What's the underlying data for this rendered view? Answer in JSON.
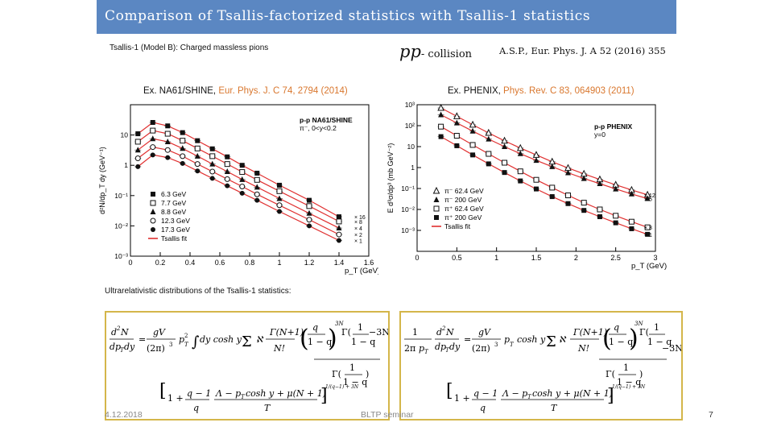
{
  "header": {
    "title": "Comparison of Tsallis-factorized statistics with Tsallis-1 statistics",
    "subtitle": "Tsallis-1 (Model B): Charged massless pions",
    "collision_pp": "pp",
    "collision_text": "- collision",
    "reference": "A.S.P., Eur. Phys. J. A 52 (2016) 355"
  },
  "captions": {
    "left_prefix": "Ex. NA61/SHINE, ",
    "left_journal": "Eur. Phys. J. C 74, 2794 (2014)",
    "right_prefix": "Ex. PHENIX, ",
    "right_journal": "Phys. Rev. C 83, 064903 (2011)"
  },
  "ultra_label": "Ultrarelativistic distributions of the Tsallis-1 statistics:",
  "footer": {
    "date": "4.12.2018",
    "center": "BLTP seminar",
    "page": "7"
  },
  "colors": {
    "title_bar": "#5b87c2",
    "fit_line": "#e03030",
    "journal_text": "#d9772e",
    "formula_border": "#d4b64a"
  },
  "chart_data": [
    {
      "type": "scatter",
      "x_log": false,
      "y_log": true,
      "xlabel": "p_T (GeV)",
      "ylabel": "d²N/dp_T dy (GeV⁻¹)",
      "xlim": [
        0,
        1.6
      ],
      "ylim": [
        0.001,
        100
      ],
      "x_ticks": [
        "0",
        "0.2",
        "0.4",
        "0.6",
        "0.8",
        "1",
        "1.2",
        "1.4",
        "1.6"
      ],
      "y_ticks": [
        "10⁻³",
        "10⁻²",
        "10⁻¹",
        "1",
        "10"
      ],
      "panel_label": [
        "p-p  NA61/SHINE",
        "π⁻, 0<y<0.2"
      ],
      "legend": [
        "6.3 GeV",
        "7.7 GeV",
        "8.8 GeV",
        "12.3 GeV",
        "17.3 GeV",
        "Tsallis fit"
      ],
      "legend_position": "bottom-left",
      "scale_labels": [
        "× 16",
        "× 8",
        "× 4",
        "× 2",
        "× 1"
      ],
      "series": [
        {
          "name": "6.3 GeV",
          "marker": "filled-square",
          "scale": 16,
          "x": [
            0.05,
            0.15,
            0.25,
            0.35,
            0.45,
            0.55,
            0.65,
            0.75,
            0.85,
            1.0,
            1.2,
            1.4
          ],
          "y": [
            11,
            26,
            20,
            12,
            6.5,
            3.5,
            1.9,
            1.0,
            0.55,
            0.22,
            0.07,
            0.02
          ]
        },
        {
          "name": "7.7 GeV",
          "marker": "open-square",
          "scale": 8,
          "x": [
            0.05,
            0.15,
            0.25,
            0.35,
            0.45,
            0.55,
            0.65,
            0.75,
            0.85,
            1.0,
            1.2,
            1.4
          ],
          "y": [
            6,
            14,
            11,
            6.5,
            3.6,
            2.0,
            1.1,
            0.6,
            0.33,
            0.14,
            0.045,
            0.014
          ]
        },
        {
          "name": "8.8 GeV",
          "marker": "filled-triangle",
          "scale": 4,
          "x": [
            0.05,
            0.15,
            0.25,
            0.35,
            0.45,
            0.55,
            0.65,
            0.75,
            0.85,
            1.0,
            1.2,
            1.4
          ],
          "y": [
            3.2,
            7.5,
            6.0,
            3.6,
            2.0,
            1.1,
            0.62,
            0.34,
            0.19,
            0.08,
            0.026,
            0.0085
          ]
        },
        {
          "name": "12.3 GeV",
          "marker": "open-circle",
          "scale": 2,
          "x": [
            0.05,
            0.15,
            0.25,
            0.35,
            0.45,
            0.55,
            0.65,
            0.75,
            0.85,
            1.0,
            1.2,
            1.4
          ],
          "y": [
            1.7,
            4.0,
            3.2,
            2.0,
            1.1,
            0.62,
            0.35,
            0.2,
            0.11,
            0.048,
            0.016,
            0.0052
          ]
        },
        {
          "name": "17.3 GeV",
          "marker": "filled-circle",
          "scale": 1,
          "x": [
            0.05,
            0.15,
            0.25,
            0.35,
            0.45,
            0.55,
            0.65,
            0.75,
            0.85,
            1.0,
            1.2,
            1.4
          ],
          "y": [
            0.9,
            2.2,
            1.8,
            1.15,
            0.65,
            0.37,
            0.21,
            0.12,
            0.07,
            0.03,
            0.01,
            0.0033
          ]
        }
      ]
    },
    {
      "type": "scatter",
      "x_log": false,
      "y_log": true,
      "xlabel": "p_T (GeV)",
      "ylabel": "E d³σ/dp³ (mb GeV⁻²)",
      "xlim": [
        0,
        3
      ],
      "ylim": [
        0.0001,
        1000
      ],
      "x_ticks": [
        "0",
        "0.5",
        "1",
        "1.5",
        "2",
        "2.5",
        "3"
      ],
      "y_ticks": [
        "10⁻³",
        "10⁻²",
        "10⁻¹",
        "1",
        "10",
        "10²",
        "10³"
      ],
      "panel_label": [
        "p-p  PHENIX",
        "y=0"
      ],
      "legend": [
        "π⁻  62.4 GeV",
        "π⁻  200 GeV",
        "π⁺  62.4 GeV",
        "π⁺  200 GeV",
        "Tsallis fit"
      ],
      "legend_position": "bottom-left",
      "scale_labels": [
        "× 12",
        "× 5",
        "× 3",
        "× 1"
      ],
      "series": [
        {
          "name": "π⁻  62.4 GeV",
          "marker": "open-triangle",
          "scale": 12,
          "x": [
            0.3,
            0.5,
            0.7,
            0.9,
            1.1,
            1.3,
            1.5,
            1.7,
            1.9,
            2.1,
            2.3,
            2.5,
            2.7,
            2.9
          ],
          "y": [
            700,
            280,
            110,
            45,
            19,
            8.5,
            4.0,
            1.9,
            0.95,
            0.5,
            0.27,
            0.15,
            0.085,
            0.05
          ]
        },
        {
          "name": "π⁻  200 GeV",
          "marker": "filled-triangle",
          "scale": 5,
          "x": [
            0.3,
            0.5,
            0.7,
            0.9,
            1.1,
            1.3,
            1.5,
            1.7,
            1.9,
            2.1,
            2.3,
            2.5,
            2.7,
            2.9
          ],
          "y": [
            330,
            135,
            55,
            23,
            10,
            4.6,
            2.2,
            1.1,
            0.56,
            0.3,
            0.17,
            0.095,
            0.055,
            0.033
          ]
        },
        {
          "name": "π⁺  62.4 GeV",
          "marker": "open-square",
          "scale": 3,
          "x": [
            0.3,
            0.5,
            0.7,
            0.9,
            1.1,
            1.3,
            1.5,
            1.7,
            1.9,
            2.1,
            2.3,
            2.5,
            2.7,
            2.9
          ],
          "y": [
            90,
            33,
            12,
            4.5,
            1.7,
            0.66,
            0.26,
            0.11,
            0.047,
            0.021,
            0.01,
            0.005,
            0.0026,
            0.0014
          ]
        },
        {
          "name": "π⁺  200 GeV",
          "marker": "filled-square",
          "scale": 1,
          "x": [
            0.3,
            0.5,
            0.7,
            0.9,
            1.1,
            1.3,
            1.5,
            1.7,
            1.9,
            2.1,
            2.3,
            2.5,
            2.7,
            2.9
          ],
          "y": [
            30,
            11,
            4.0,
            1.5,
            0.58,
            0.23,
            0.095,
            0.041,
            0.019,
            0.009,
            0.0045,
            0.0023,
            0.0012,
            0.00065
          ]
        }
      ]
    }
  ]
}
